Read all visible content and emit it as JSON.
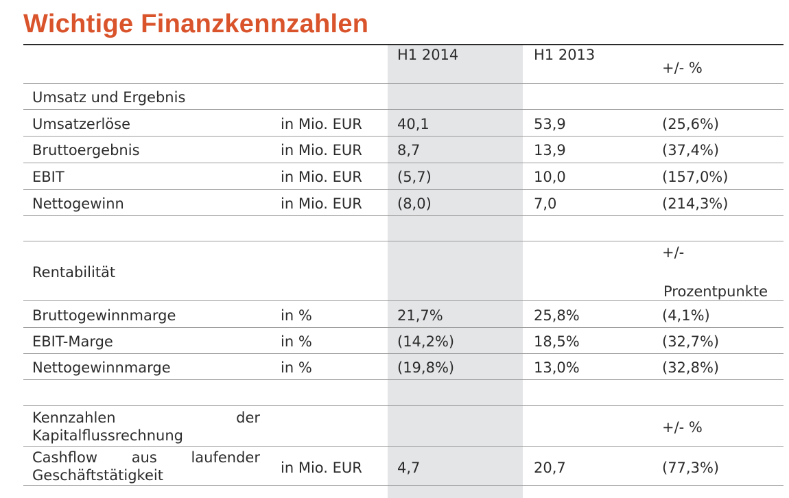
{
  "title": "Wichtige Finanzkennzahlen",
  "header": {
    "col_2014": "H1 2014",
    "col_2013": "H1 2013",
    "col_change": "+/- %"
  },
  "section1": {
    "label": "Umsatz und Ergebnis",
    "rows": [
      {
        "label": "Umsatzerlöse",
        "unit": "in Mio. EUR",
        "v2014": "40,1",
        "v2013": "53,9",
        "change": "(25,6%)"
      },
      {
        "label": "Bruttoergebnis",
        "unit": "in Mio. EUR",
        "v2014": "8,7",
        "v2013": "13,9",
        "change": "(37,4%)"
      },
      {
        "label": "EBIT",
        "unit": "in Mio. EUR",
        "v2014": "(5,7)",
        "v2013": "10,0",
        "change": "(157,0%)"
      },
      {
        "label": "Nettogewinn",
        "unit": "in Mio. EUR",
        "v2014": "(8,0)",
        "v2013": "7,0",
        "change": "(214,3%)"
      }
    ]
  },
  "section2": {
    "label": "Rentabilität",
    "change_line1": "+/-",
    "change_line2": "Prozentpunkte",
    "rows": [
      {
        "label": "Bruttogewinnmarge",
        "unit": "in %",
        "v2014": "21,7%",
        "v2013": "25,8%",
        "change": "(4,1%)"
      },
      {
        "label": "EBIT-Marge",
        "unit": "in %",
        "v2014": "(14,2%)",
        "v2013": "18,5%",
        "change": "(32,7%)"
      },
      {
        "label": "Nettogewinnmarge",
        "unit": "in %",
        "v2014": "(19,8%)",
        "v2013": "13,0%",
        "change": "(32,8%)"
      }
    ]
  },
  "section3": {
    "label_line1": "Kennzahlen der",
    "label_line2": "Kapitalflussrechnung",
    "change": "+/- %",
    "row": {
      "label_line1": "Cashflow aus laufender",
      "label_line2": "Geschäftstätigkeit",
      "unit": "in Mio. EUR",
      "v2014": "4,7",
      "v2013": "20,7",
      "change": "(77,3%)"
    }
  }
}
